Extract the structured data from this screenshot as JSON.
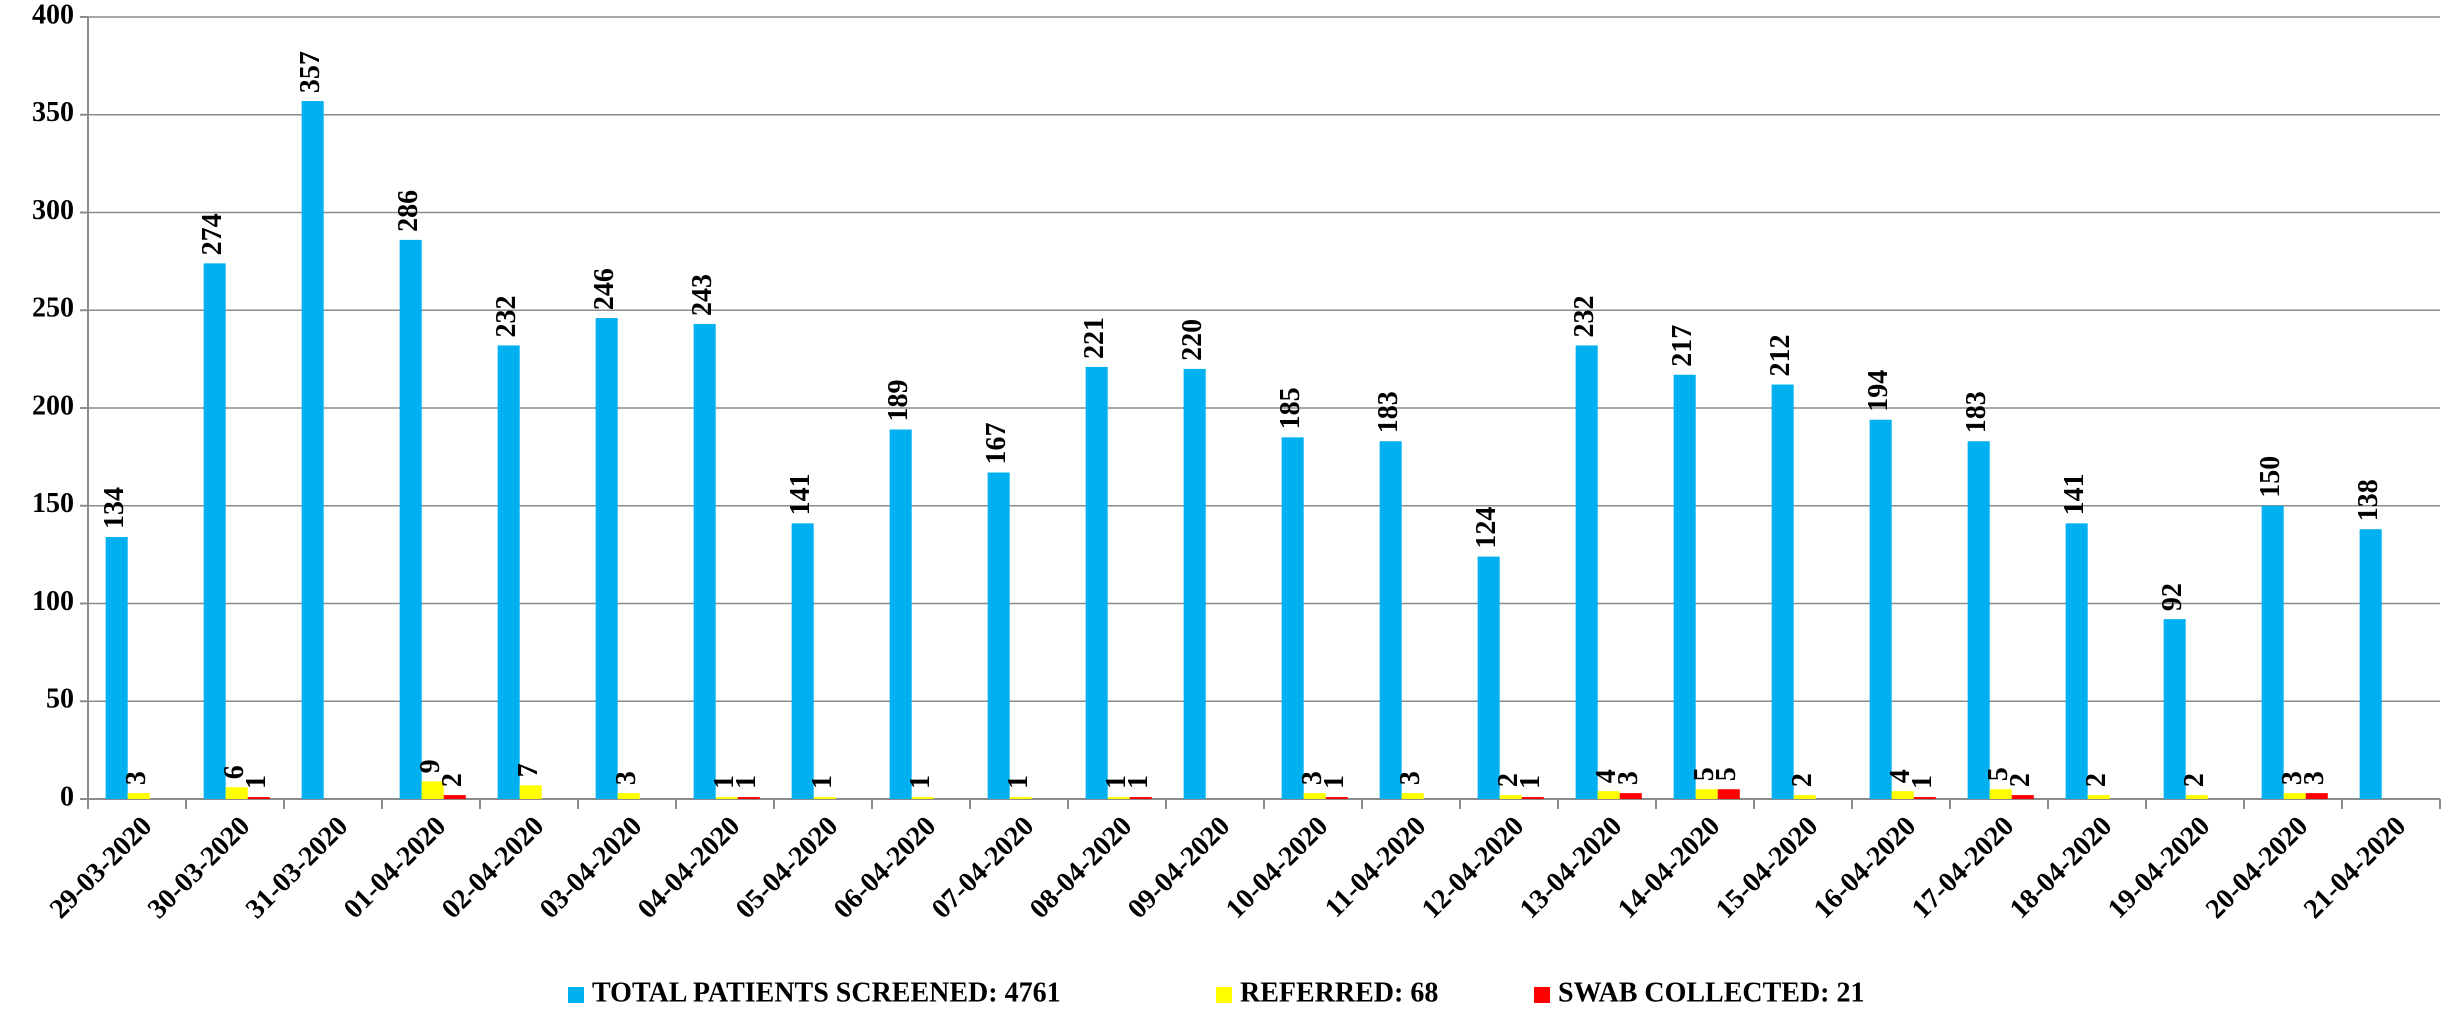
{
  "chart_data": {
    "type": "bar",
    "categories": [
      "29-03-2020",
      "30-03-2020",
      "31-03-2020",
      "01-04-2020",
      "02-04-2020",
      "03-04-2020",
      "04-04-2020",
      "05-04-2020",
      "06-04-2020",
      "07-04-2020",
      "08-04-2020",
      "09-04-2020",
      "10-04-2020",
      "11-04-2020",
      "12-04-2020",
      "13-04-2020",
      "14-04-2020",
      "15-04-2020",
      "16-04-2020",
      "17-04-2020",
      "18-04-2020",
      "19-04-2020",
      "20-04-2020",
      "21-04-2020"
    ],
    "series": [
      {
        "name": "TOTAL PATIENTS SCREENED: 4761",
        "color": "#00b0f0",
        "values": [
          134,
          274,
          357,
          286,
          232,
          246,
          243,
          141,
          189,
          167,
          221,
          220,
          185,
          183,
          124,
          232,
          217,
          212,
          194,
          183,
          141,
          92,
          150,
          138
        ]
      },
      {
        "name": "REFERRED: 68",
        "color": "#ffff00",
        "values": [
          3,
          6,
          0,
          9,
          7,
          3,
          1,
          1,
          1,
          1,
          1,
          0,
          3,
          3,
          2,
          4,
          5,
          2,
          4,
          5,
          2,
          2,
          3,
          0
        ]
      },
      {
        "name": "SWAB COLLECTED: 21",
        "color": "#ff0000",
        "values": [
          0,
          1,
          0,
          2,
          0,
          0,
          1,
          0,
          0,
          0,
          1,
          0,
          1,
          0,
          1,
          3,
          5,
          0,
          1,
          2,
          0,
          0,
          3,
          0
        ]
      }
    ],
    "ylim": [
      0,
      400
    ],
    "yticks": [
      0,
      50,
      100,
      150,
      200,
      250,
      300,
      350,
      400
    ],
    "grid": true,
    "legend": "bottom"
  }
}
